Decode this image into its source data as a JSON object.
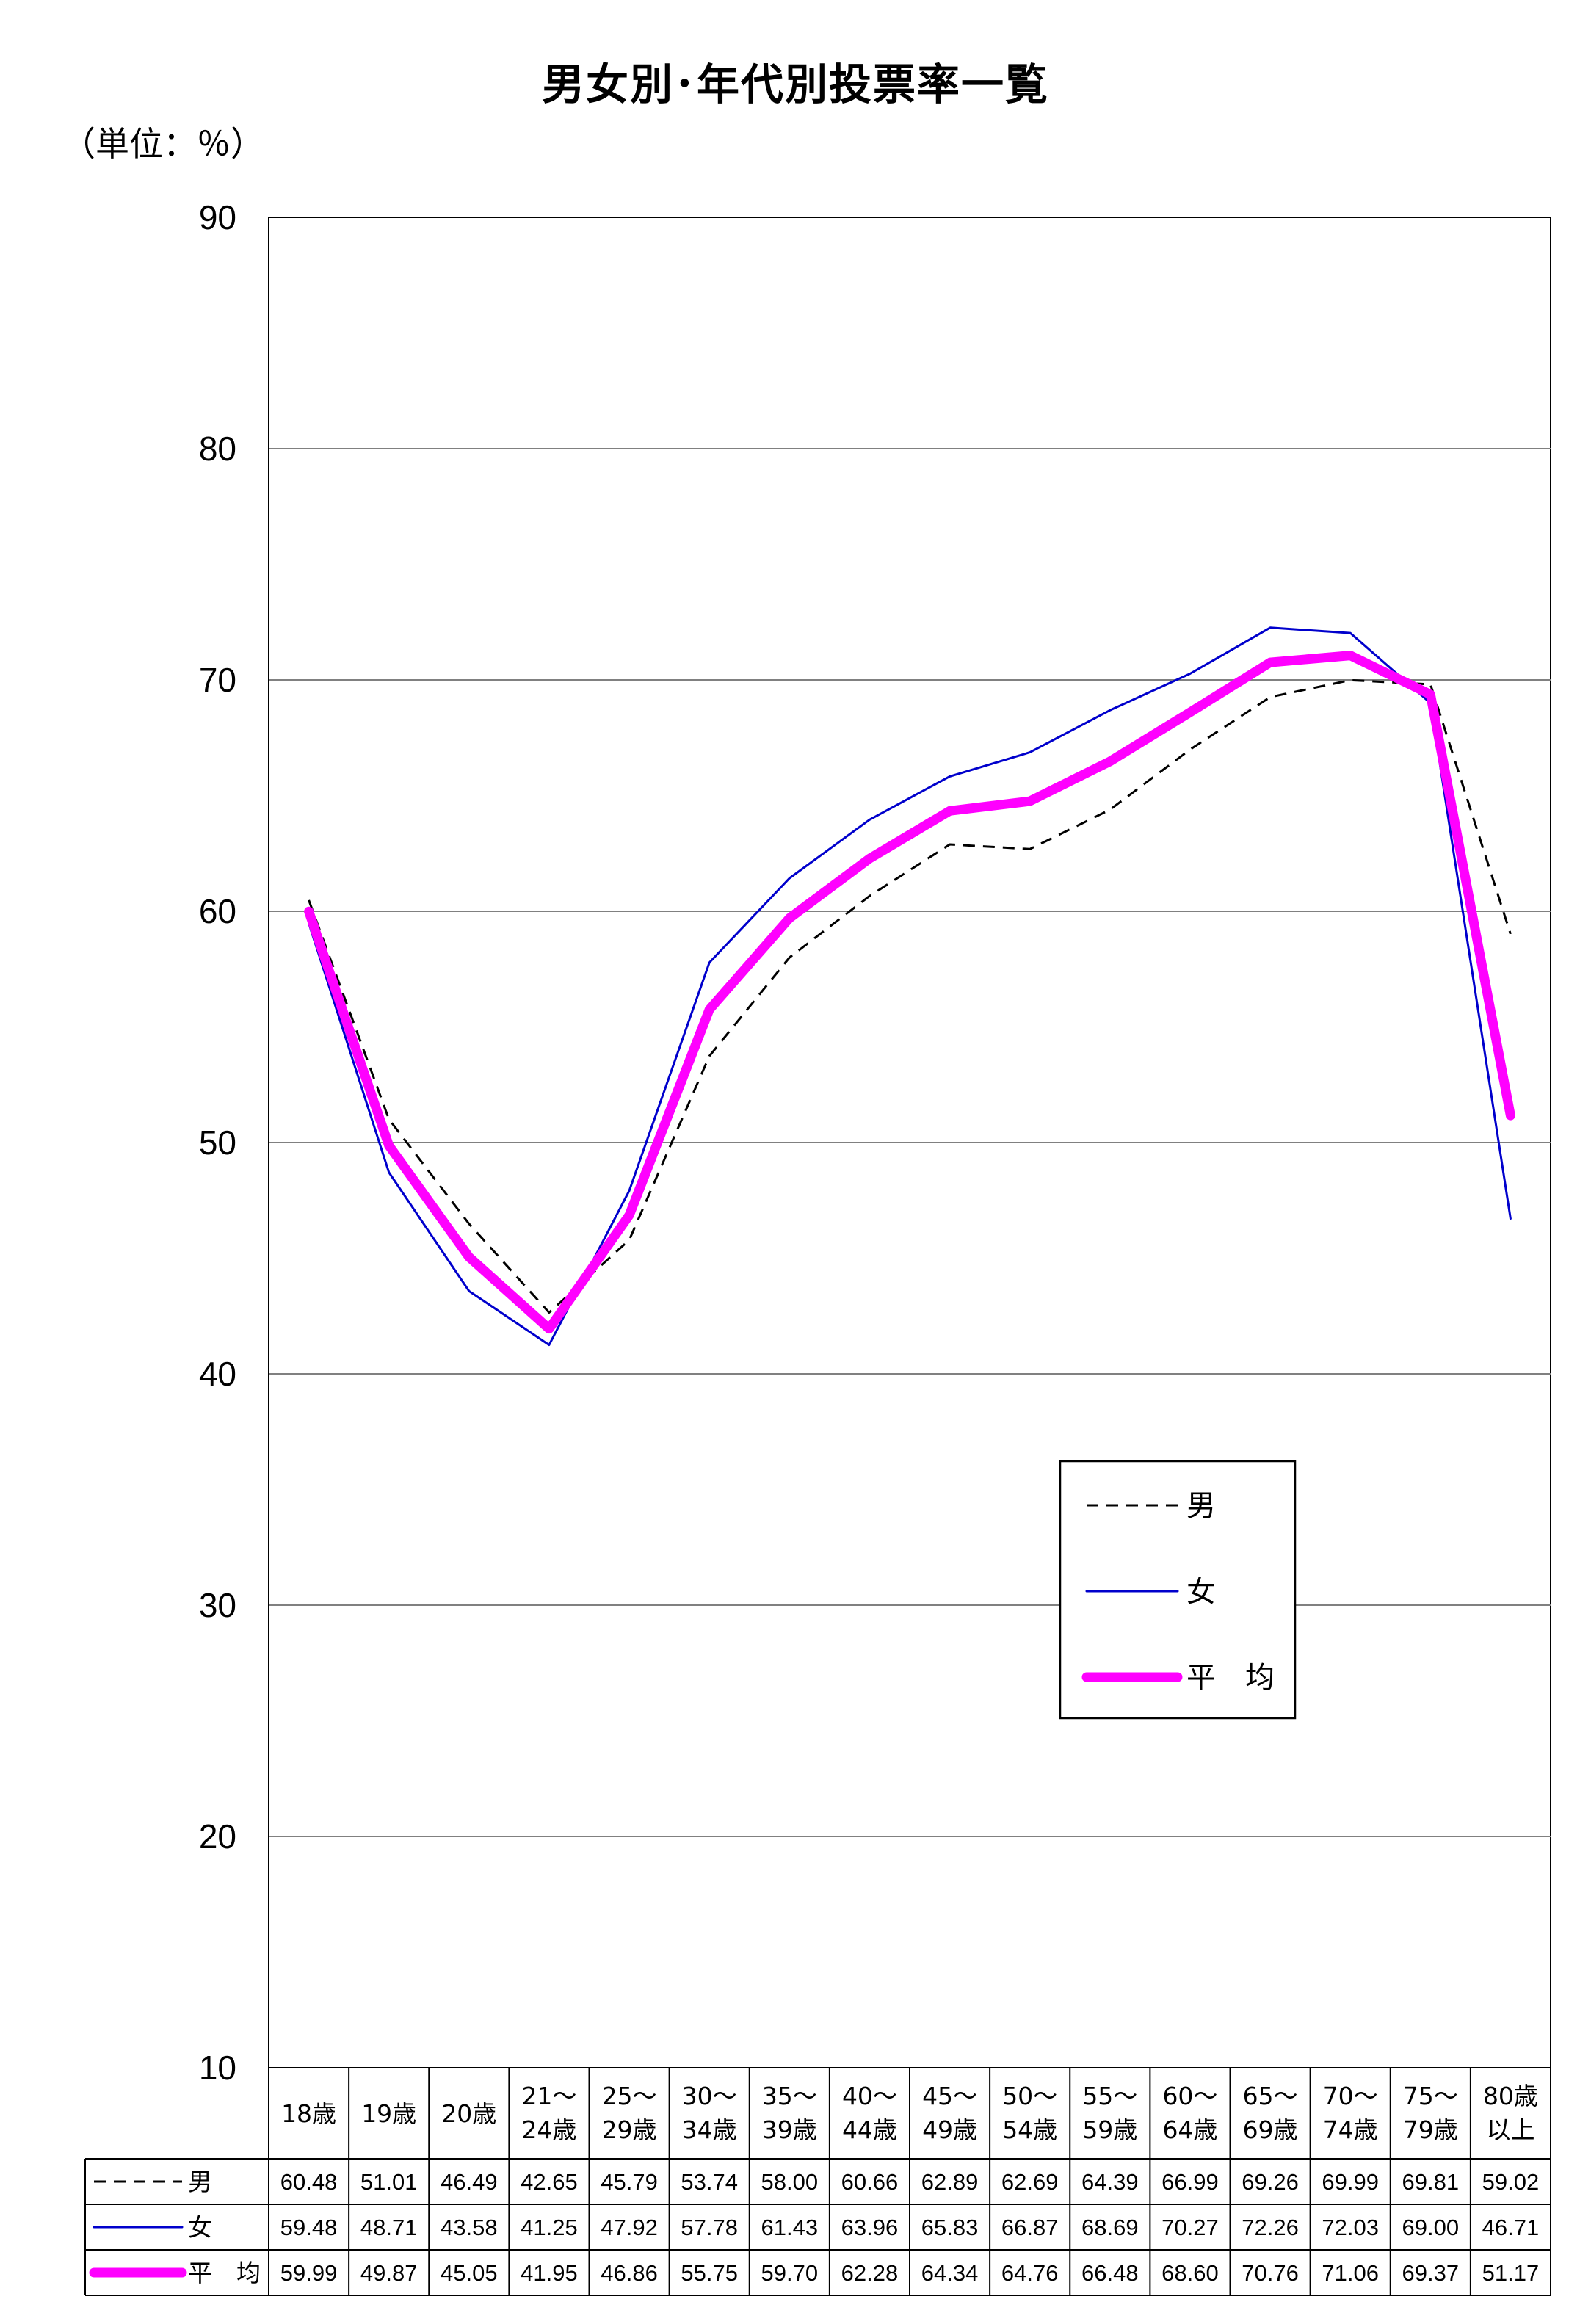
{
  "chart_data": {
    "type": "line",
    "title": "男女別･年代別投票率一覧",
    "unit": "（単位：％）",
    "ylim": [
      10,
      90
    ],
    "yticks": [
      "10",
      "20",
      "30",
      "40",
      "50",
      "60",
      "70",
      "80",
      "90"
    ],
    "grid": true,
    "legend_position": "right",
    "categories": [
      [
        "18歳"
      ],
      [
        "19歳"
      ],
      [
        "20歳"
      ],
      [
        "21～",
        "24歳"
      ],
      [
        "25～",
        "29歳"
      ],
      [
        "30～",
        "34歳"
      ],
      [
        "35～",
        "39歳"
      ],
      [
        "40～",
        "44歳"
      ],
      [
        "45～",
        "49歳"
      ],
      [
        "50～",
        "54歳"
      ],
      [
        "55～",
        "59歳"
      ],
      [
        "60～",
        "64歳"
      ],
      [
        "65～",
        "69歳"
      ],
      [
        "70～",
        "74歳"
      ],
      [
        "75～",
        "79歳"
      ],
      [
        "80歳",
        "以上"
      ]
    ],
    "series": [
      {
        "name": "男",
        "color": "#000000",
        "style": "dashed",
        "values": [
          60.48,
          51.01,
          46.49,
          42.65,
          45.79,
          53.74,
          58.0,
          60.66,
          62.89,
          62.69,
          64.39,
          66.99,
          69.26,
          69.99,
          69.81,
          59.02
        ],
        "labels": [
          "60.48",
          "51.01",
          "46.49",
          "42.65",
          "45.79",
          "53.74",
          "58.00",
          "60.66",
          "62.89",
          "62.69",
          "64.39",
          "66.99",
          "69.26",
          "69.99",
          "69.81",
          "59.02"
        ]
      },
      {
        "name": "女",
        "color": "#0000cc",
        "style": "solid",
        "values": [
          59.48,
          48.71,
          43.58,
          41.25,
          47.92,
          57.78,
          61.43,
          63.96,
          65.83,
          66.87,
          68.69,
          70.27,
          72.26,
          72.03,
          69.0,
          46.71
        ],
        "labels": [
          "59.48",
          "48.71",
          "43.58",
          "41.25",
          "47.92",
          "57.78",
          "61.43",
          "63.96",
          "65.83",
          "66.87",
          "68.69",
          "70.27",
          "72.26",
          "72.03",
          "69.00",
          "46.71"
        ]
      },
      {
        "name": "平　均",
        "color": "#ff00ff",
        "style": "thick",
        "values": [
          59.99,
          49.87,
          45.05,
          41.95,
          46.86,
          55.75,
          59.7,
          62.28,
          64.34,
          64.76,
          66.48,
          68.6,
          70.76,
          71.06,
          69.37,
          51.17
        ],
        "labels": [
          "59.99",
          "49.87",
          "45.05",
          "41.95",
          "46.86",
          "55.75",
          "59.70",
          "62.28",
          "64.34",
          "64.76",
          "66.48",
          "68.60",
          "70.76",
          "71.06",
          "69.37",
          "51.17"
        ]
      }
    ]
  }
}
